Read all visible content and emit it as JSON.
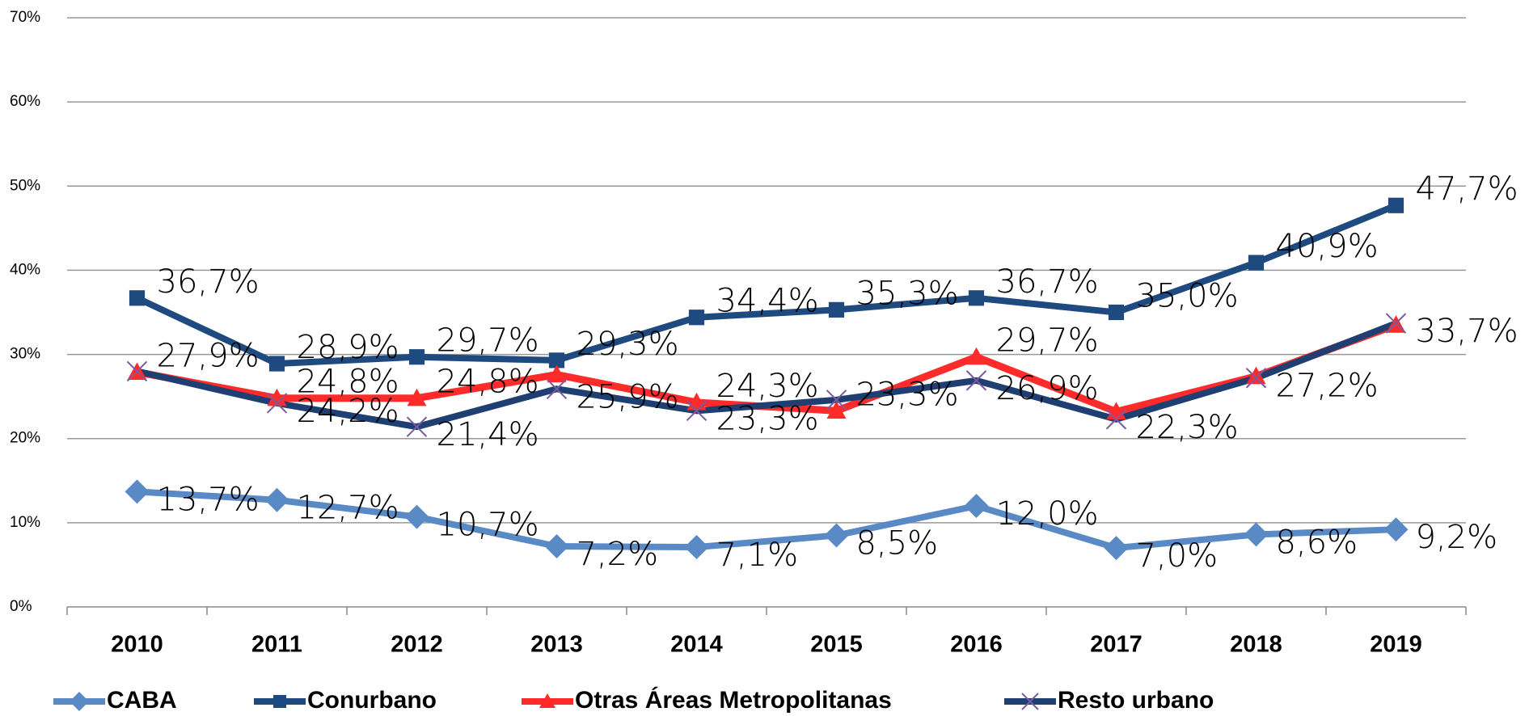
{
  "chart_data": {
    "type": "line",
    "categories": [
      "2010",
      "2011",
      "2012",
      "2013",
      "2014",
      "2015",
      "2016",
      "2017",
      "2018",
      "2019"
    ],
    "series": [
      {
        "name": "CABA",
        "color": "#5a8ac6",
        "marker": "diamond",
        "values": [
          13.7,
          12.7,
          10.7,
          7.2,
          7.1,
          8.5,
          12.0,
          7.0,
          8.6,
          9.2
        ],
        "value_labels": [
          "13,7%",
          "12,7%",
          "10,7%",
          "7,2%",
          "7,1%",
          "8,5%",
          "12,0%",
          "7,0%",
          "8,6%",
          "9,2%"
        ]
      },
      {
        "name": "Conurbano",
        "color": "#1f4a80",
        "marker": "square",
        "values": [
          36.7,
          28.9,
          29.7,
          29.3,
          34.4,
          35.3,
          36.7,
          35.0,
          40.9,
          47.7
        ],
        "value_labels": [
          "36,7%",
          "28,9%",
          "29,7%",
          "29,3%",
          "34,4%",
          "35,3%",
          "36,7%",
          "35,0%",
          "40,9%",
          "47,7%"
        ]
      },
      {
        "name": "Otras Áreas Metropolitanas",
        "color": "#ff2b2b",
        "marker": "triangle",
        "values": [
          27.9,
          24.8,
          24.8,
          27.6,
          24.3,
          23.3,
          29.7,
          23.2,
          27.4,
          33.5
        ],
        "value_labels": [
          "27,9%",
          "24,8%",
          "24,8%",
          null,
          "24,3%",
          "23,3%",
          "29,7%",
          null,
          null,
          null
        ]
      },
      {
        "name": "Resto urbano",
        "color": "#1f3f73",
        "marker": "x",
        "marker_color": "#7a5aa0",
        "values": [
          28.0,
          24.2,
          21.4,
          25.9,
          23.3,
          24.6,
          26.9,
          22.3,
          27.2,
          33.7
        ],
        "value_labels": [
          null,
          "24,2%",
          "21,4%",
          "25,9%",
          "23,3%",
          null,
          "26,9%",
          "22,3%",
          "27,2%",
          "33,7%"
        ]
      }
    ],
    "ylim": [
      0,
      70
    ],
    "yticks": [
      {
        "value": 0,
        "label": "0%"
      },
      {
        "value": 10,
        "label": "10%"
      },
      {
        "value": 20,
        "label": "20%"
      },
      {
        "value": 30,
        "label": "30%"
      },
      {
        "value": 40,
        "label": "40%"
      },
      {
        "value": 50,
        "label": "50%"
      },
      {
        "value": 60,
        "label": "60%"
      },
      {
        "value": 70,
        "label": "70%"
      }
    ],
    "grid": true,
    "legend": "bottom"
  }
}
